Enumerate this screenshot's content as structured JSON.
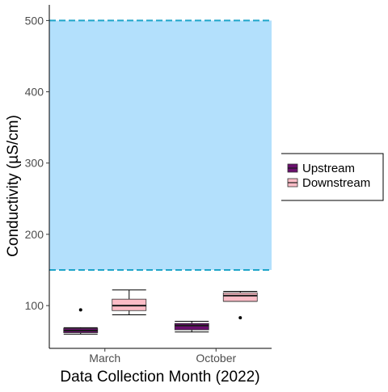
{
  "chart_data": {
    "type": "boxplot",
    "xlabel": "Data Collection Month (2022)",
    "ylabel": "Conductivity (µS/cm)",
    "categories": [
      "March",
      "October"
    ],
    "ylim": [
      40,
      522
    ],
    "yticks": [
      100,
      200,
      300,
      400,
      500
    ],
    "ytick_labels": [
      "100",
      "200",
      "300",
      "400",
      "500"
    ],
    "grid": false,
    "reference_band": {
      "low": 150,
      "high": 500,
      "color": "#b3e0fc",
      "line_color": "#1ea5c9"
    },
    "legend": {
      "placement": "right"
    },
    "series": [
      {
        "name": "Upstream",
        "color": "#6a0f6e",
        "boxes": [
          {
            "category": "March",
            "whisker_low": 60,
            "q1": 62,
            "median": 65,
            "q3": 68,
            "whisker_high": 69,
            "outliers": [
              94
            ]
          },
          {
            "category": "October",
            "whisker_low": 63,
            "q1": 66,
            "median": 72,
            "q3": 75,
            "whisker_high": 78,
            "outliers": []
          }
        ]
      },
      {
        "name": "Downstream",
        "color": "#fbbcc6",
        "boxes": [
          {
            "category": "March",
            "whisker_low": 87,
            "q1": 93,
            "median": 100,
            "q3": 109,
            "whisker_high": 122,
            "outliers": []
          },
          {
            "category": "October",
            "whisker_low": 106,
            "q1": 106,
            "median": 114,
            "q3": 118,
            "whisker_high": 120,
            "outliers": [
              83
            ]
          }
        ]
      }
    ]
  }
}
